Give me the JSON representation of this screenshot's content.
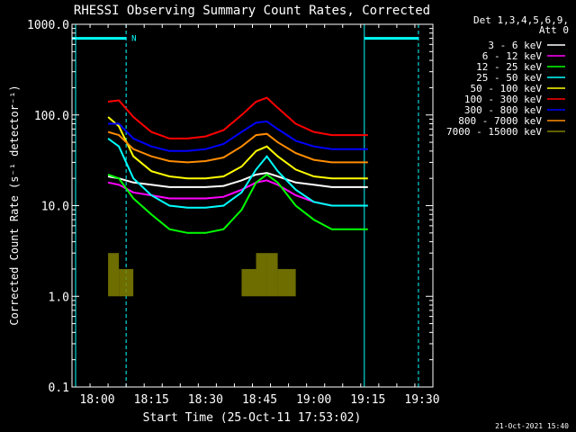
{
  "chart_data": {
    "type": "line",
    "title": "RHESSI Observing Summary Count Rates, Corrected",
    "xlabel": "Start Time (25-Oct-11 17:53:02)",
    "ylabel": "Corrected Count Rate (s⁻¹ detector⁻¹)",
    "scale": "log",
    "xlim": [
      "17:53",
      "19:33"
    ],
    "ylim": [
      0.1,
      1000
    ],
    "xticks": [
      "18:00",
      "18:15",
      "18:30",
      "18:45",
      "19:00",
      "19:15",
      "19:30"
    ],
    "yticks": [
      "0.1",
      "1.0",
      "10.0",
      "100.0",
      "1000.0"
    ],
    "legend_header": [
      "Det 1,3,4,5,6,9,",
      "Att 0"
    ],
    "legend_position": "right",
    "timestamp": "21-Oct-2021 15:40",
    "annotations": [
      {
        "text": "N",
        "time": "18:08",
        "color": "#00ffff"
      }
    ],
    "night_segments": [
      {
        "start": "17:53",
        "end": "18:08",
        "level": 700,
        "color": "#00ffff"
      },
      {
        "start": "19:14",
        "end": "19:29",
        "level": 700,
        "color": "#00ffff"
      }
    ],
    "vertical_lines": [
      {
        "time": "17:54",
        "style": "solid",
        "color": "#00ffff"
      },
      {
        "time": "18:08",
        "style": "dashed",
        "color": "#00ffff"
      },
      {
        "time": "19:14",
        "style": "solid",
        "color": "#00ffff"
      },
      {
        "time": "19:29",
        "style": "dashed",
        "color": "#00ffff"
      }
    ],
    "x": [
      "18:03",
      "18:06",
      "18:10",
      "18:15",
      "18:20",
      "18:25",
      "18:30",
      "18:35",
      "18:40",
      "18:44",
      "18:47",
      "18:50",
      "18:55",
      "19:00",
      "19:05",
      "19:10",
      "19:15"
    ],
    "series": [
      {
        "name": "3 - 6 keV",
        "color": "#ffffff",
        "values": [
          21,
          20,
          18,
          17,
          16,
          16,
          16,
          16.5,
          19,
          22,
          23,
          21,
          18,
          17,
          16,
          16,
          16
        ]
      },
      {
        "name": "6 - 12 keV",
        "color": "#ff00ff",
        "values": [
          18,
          17,
          14,
          13,
          12,
          12,
          12,
          12.5,
          15,
          18,
          19,
          17,
          13,
          11,
          10,
          10,
          10
        ]
      },
      {
        "name": "12 - 25 keV",
        "color": "#00ff00",
        "values": [
          22,
          20,
          12,
          8,
          5.5,
          5,
          5,
          5.5,
          9,
          18,
          22,
          18,
          10,
          7,
          5.5,
          5.5,
          5.5
        ]
      },
      {
        "name": "25 - 50 keV",
        "color": "#00ffff",
        "values": [
          55,
          45,
          20,
          13,
          10,
          9.5,
          9.5,
          10,
          14,
          25,
          35,
          24,
          15,
          11,
          10,
          10,
          10
        ]
      },
      {
        "name": "50 - 100 keV",
        "color": "#ffff00",
        "values": [
          95,
          75,
          35,
          24,
          21,
          20,
          20,
          21,
          27,
          40,
          45,
          35,
          25,
          21,
          20,
          20,
          20
        ]
      },
      {
        "name": "100 - 300 keV",
        "color": "#ff0000",
        "values": [
          140,
          145,
          95,
          65,
          55,
          55,
          58,
          68,
          100,
          140,
          155,
          120,
          80,
          65,
          60,
          60,
          60
        ]
      },
      {
        "name": "300 - 800 keV",
        "color": "#0000ff",
        "values": [
          80,
          80,
          55,
          45,
          40,
          40,
          42,
          48,
          65,
          82,
          85,
          70,
          52,
          45,
          42,
          42,
          42
        ]
      },
      {
        "name": "800 - 7000 keV",
        "color": "#ff8c00",
        "values": [
          65,
          60,
          42,
          35,
          31,
          30,
          31,
          34,
          45,
          60,
          62,
          50,
          38,
          32,
          30,
          30,
          30
        ]
      },
      {
        "name": "7000 - 15000 keV",
        "color": "#808000",
        "values": [
          3,
          2,
          1,
          null,
          null,
          null,
          null,
          1,
          2,
          3,
          3,
          2,
          1,
          null,
          null,
          null,
          null
        ]
      }
    ]
  }
}
